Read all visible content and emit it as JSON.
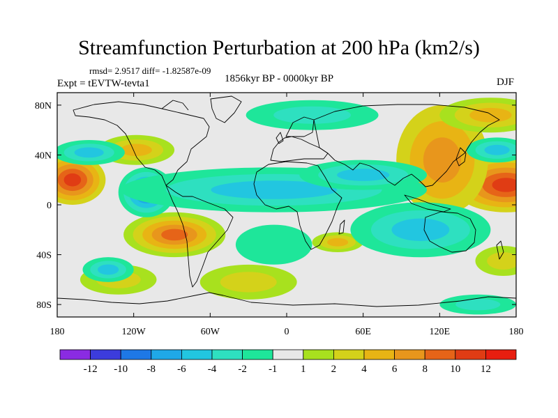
{
  "title": "Streamfunction Perturbation at 200 hPa (km2/s)",
  "stats": "rmsd= 2.9517 diff= -1.82587e-09",
  "expt": "Expt = tEVTW-tevta1",
  "period": "1856kyr BP - 0000kyr BP",
  "season": "DJF",
  "map": {
    "projection": "cylindrical-equidistant",
    "lon_range": [
      -180,
      180
    ],
    "lat_range": [
      -90,
      90
    ],
    "lon_ticks": [
      {
        "value": -180,
        "label": "180"
      },
      {
        "value": -120,
        "label": "120W"
      },
      {
        "value": -60,
        "label": "60W"
      },
      {
        "value": 0,
        "label": "0"
      },
      {
        "value": 60,
        "label": "60E"
      },
      {
        "value": 120,
        "label": "120E"
      },
      {
        "value": 180,
        "label": "180"
      }
    ],
    "lat_ticks": [
      {
        "value": 80,
        "label": "80N"
      },
      {
        "value": 40,
        "label": "40N"
      },
      {
        "value": 0,
        "label": "0"
      },
      {
        "value": -40,
        "label": "40S"
      },
      {
        "value": -80,
        "label": "80S"
      }
    ]
  },
  "colorbar": {
    "labels": [
      "-12",
      "-10",
      "-8",
      "-6",
      "-4",
      "-2",
      "-1",
      "1",
      "2",
      "4",
      "6",
      "8",
      "10",
      "12"
    ],
    "colors": [
      "#8a2be2",
      "#3c3cdc",
      "#1e78e6",
      "#1fa8e8",
      "#22c6e0",
      "#2ee0c0",
      "#1ee69a",
      "#e8e8e8",
      "#a8e11e",
      "#d4d21a",
      "#e8b414",
      "#e8961c",
      "#e66418",
      "#e03c14",
      "#e81e10"
    ]
  },
  "field_blobs": [
    {
      "lon": -168,
      "lat": 20,
      "rx": 26,
      "ry": 20,
      "levels": [
        2,
        4,
        6,
        8,
        10
      ]
    },
    {
      "lon": 172,
      "lat": 16,
      "rx": 42,
      "ry": 22,
      "levels": [
        2,
        4,
        6,
        8,
        10
      ]
    },
    {
      "lon": 122,
      "lat": 36,
      "rx": 36,
      "ry": 44,
      "levels": [
        2,
        4,
        6
      ]
    },
    {
      "lon": -88,
      "lat": -24,
      "rx": 40,
      "ry": 18,
      "levels": [
        1,
        2,
        4,
        6,
        8
      ]
    },
    {
      "lon": -118,
      "lat": 44,
      "rx": 30,
      "ry": 12,
      "levels": [
        1,
        2,
        4
      ]
    },
    {
      "lon": 40,
      "lat": -30,
      "rx": 20,
      "ry": 8,
      "levels": [
        1,
        2,
        4
      ]
    },
    {
      "lon": -132,
      "lat": -60,
      "rx": 30,
      "ry": 12,
      "levels": [
        1,
        2
      ]
    },
    {
      "lon": -30,
      "lat": -62,
      "rx": 38,
      "ry": 14,
      "levels": [
        1,
        2
      ]
    },
    {
      "lon": 160,
      "lat": 72,
      "rx": 40,
      "ry": 14,
      "levels": [
        1,
        2,
        4
      ]
    },
    {
      "lon": 170,
      "lat": -45,
      "rx": 22,
      "ry": 12,
      "levels": [
        1,
        2
      ]
    },
    {
      "lon": -110,
      "lat": 10,
      "rx": 22,
      "ry": 20,
      "levels": [
        -1,
        -2,
        -4,
        -6,
        -8
      ]
    },
    {
      "lon": -10,
      "lat": 12,
      "rx": 120,
      "ry": 18,
      "levels": [
        -1,
        -2,
        -4
      ]
    },
    {
      "lon": 60,
      "lat": 24,
      "rx": 50,
      "ry": 12,
      "levels": [
        -1,
        -2,
        -4
      ]
    },
    {
      "lon": 105,
      "lat": -20,
      "rx": 55,
      "ry": 22,
      "levels": [
        -1,
        -2,
        -4
      ]
    },
    {
      "lon": -140,
      "lat": -52,
      "rx": 20,
      "ry": 10,
      "levels": [
        -1,
        -2,
        -4
      ]
    },
    {
      "lon": -155,
      "lat": 42,
      "rx": 28,
      "ry": 10,
      "levels": [
        -1,
        -2,
        -4
      ]
    },
    {
      "lon": 165,
      "lat": 44,
      "rx": 24,
      "ry": 10,
      "levels": [
        -1,
        -2,
        -4
      ]
    },
    {
      "lon": 20,
      "lat": 72,
      "rx": 52,
      "ry": 12,
      "levels": [
        -1,
        -2
      ]
    },
    {
      "lon": 150,
      "lat": -80,
      "rx": 30,
      "ry": 8,
      "levels": [
        -1,
        -2
      ]
    },
    {
      "lon": -10,
      "lat": -32,
      "rx": 30,
      "ry": 16,
      "levels": [
        -1
      ]
    }
  ]
}
